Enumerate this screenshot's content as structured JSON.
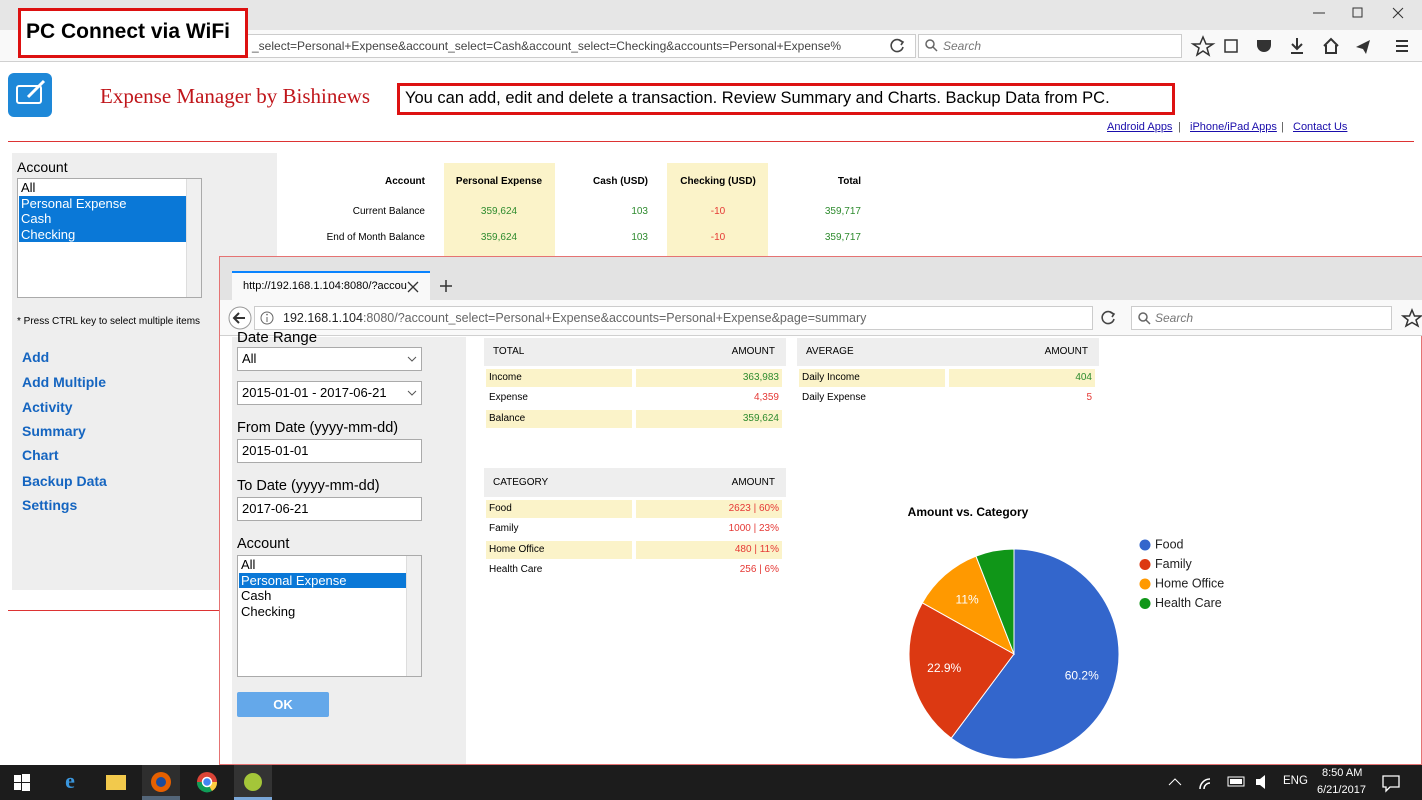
{
  "outer_browser": {
    "url": "_select=Personal+Expense&account_select=Cash&account_select=Checking&accounts=Personal+Expense%",
    "search_placeholder": "Search"
  },
  "callout_wifi": "PC Connect via WiFi",
  "header": {
    "title": "Expense Manager by Bishinews",
    "callout": "You can add, edit and delete a transaction. Review Summary and Charts. Backup Data from PC.",
    "links": [
      "Android Apps",
      "iPhone/iPad Apps",
      "Contact Us"
    ],
    "separator": "|"
  },
  "sidebar": {
    "account_label": "Account",
    "accounts": [
      "All",
      "Personal Expense",
      "Cash",
      "Checking"
    ],
    "selected_accounts": [
      "Personal Expense",
      "Cash",
      "Checking"
    ],
    "note": "* Press CTRL key to select multiple items",
    "menu": [
      "Add",
      "Add Multiple",
      "Activity",
      "Summary",
      "Chart",
      "Backup Data",
      "Settings"
    ]
  },
  "balance_table": {
    "headers": [
      "Account",
      "Personal Expense",
      "Cash (USD)",
      "Checking (USD)",
      "Total"
    ],
    "rows": [
      [
        "Current Balance",
        "359,624",
        "103",
        "-10",
        "359,717"
      ],
      [
        "End of Month Balance",
        "359,624",
        "103",
        "-10",
        "359,717"
      ]
    ]
  },
  "inner_browser": {
    "tab_title": "http://192.168.1.104:8080/?accou",
    "url_host": "192.168.1.104",
    "url_rest": ":8080/?account_select=Personal+Expense&accounts=Personal+Expense&page=summary",
    "search_placeholder": "Search"
  },
  "filters": {
    "date_range_label": "Date Range",
    "date_range": "All",
    "period": "2015-01-01 - 2017-06-21",
    "from_label": "From Date (yyyy-mm-dd)",
    "from_date": "2015-01-01",
    "to_label": "To Date (yyyy-mm-dd)",
    "to_date": "2017-06-21",
    "account_label": "Account",
    "accounts": [
      "All",
      "Personal Expense",
      "Cash",
      "Checking"
    ],
    "selected_accounts": [
      "Personal Expense"
    ],
    "ok": "OK"
  },
  "total_table": {
    "headers": [
      "TOTAL",
      "AMOUNT"
    ],
    "rows": [
      [
        "Income",
        "363,983"
      ],
      [
        "Expense",
        "4,359"
      ],
      [
        "Balance",
        "359,624"
      ]
    ]
  },
  "average_table": {
    "headers": [
      "AVERAGE",
      "AMOUNT"
    ],
    "rows": [
      [
        "Daily Income",
        "404"
      ],
      [
        "Daily Expense",
        "5"
      ]
    ]
  },
  "category_table": {
    "headers": [
      "CATEGORY",
      "AMOUNT"
    ],
    "rows": [
      [
        "Food",
        "2623 | 60%"
      ],
      [
        "Family",
        "1000 | 23%"
      ],
      [
        "Home Office",
        "480 | 11%"
      ],
      [
        "Health Care",
        "256 | 6%"
      ]
    ]
  },
  "chart_data": {
    "type": "pie",
    "title": "Amount vs. Category",
    "categories": [
      "Food",
      "Family",
      "Home Office",
      "Health Care"
    ],
    "values": [
      60.2,
      22.9,
      11,
      5.9
    ],
    "value_labels": [
      "60.2%",
      "22.9%",
      "11%",
      null
    ],
    "colors": [
      "#3366cc",
      "#dc3912",
      "#ff9900",
      "#109618"
    ],
    "legend": "right"
  },
  "taskbar": {
    "language": "ENG",
    "time": "8:50 AM",
    "date": "6/21/2017"
  }
}
